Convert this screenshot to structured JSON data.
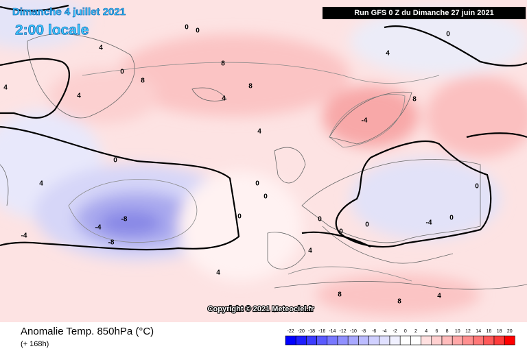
{
  "map": {
    "title_date": "Dimanche 4 juillet 2021",
    "title_time": "2:00 locale",
    "run": "Run GFS 0 Z du Dimanche 27 juin 2021",
    "copyright": "Copyright © 2021 Meteociel.fr",
    "variable": "Anomalie Temp. 850hPa (°C)",
    "lead": "(+ 168h)",
    "scale": {
      "ticks": [
        -22,
        -20,
        -18,
        -16,
        -14,
        -12,
        -10,
        -8,
        -6,
        -4,
        -2,
        0,
        2,
        4,
        6,
        8,
        10,
        12,
        14,
        16,
        18,
        20
      ],
      "colors": [
        "#0000ff",
        "#1e1eff",
        "#3c3cff",
        "#5a5aff",
        "#7878ff",
        "#9090ff",
        "#a8a8ff",
        "#bcbcff",
        "#d0d0ff",
        "#e0e0ff",
        "#f0f0ff",
        "#ffffff",
        "#ffffff",
        "#ffe0e0",
        "#ffd0d0",
        "#ffbcbc",
        "#ffa8a8",
        "#ff9090",
        "#ff7878",
        "#ff5a5a",
        "#ff3c3c",
        "#ff0000"
      ]
    },
    "contour_labels": [
      0,
      4,
      0,
      4,
      8,
      8,
      8,
      4,
      4,
      0,
      4,
      -4,
      -8,
      -8,
      -4,
      0,
      0,
      0,
      4,
      4,
      0,
      -4,
      0,
      8,
      0,
      4,
      4,
      8,
      8,
      0,
      0,
      0,
      -4,
      4,
      0
    ]
  }
}
